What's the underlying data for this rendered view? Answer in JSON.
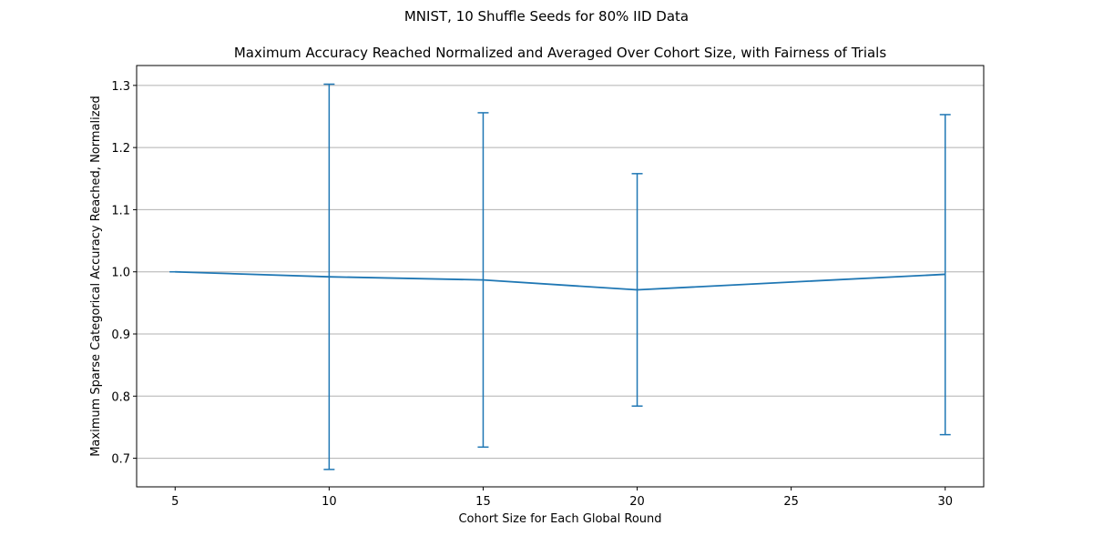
{
  "figure": {
    "suptitle": "MNIST, 10 Shuffle Seeds for 80% IID Data"
  },
  "chart_data": {
    "type": "line",
    "title": "Maximum Accuracy Reached Normalized and Averaged Over Cohort Size, with Fairness of Trials",
    "xlabel": "Cohort Size for Each Global Round",
    "ylabel": "Maximum Sparse Categorical Accuracy Reached, Normalized",
    "xlim": [
      3.75,
      31.25
    ],
    "ylim": [
      0.654,
      1.332
    ],
    "xticks": [
      5,
      10,
      15,
      20,
      25,
      30
    ],
    "yticks": [
      0.7,
      0.8,
      0.9,
      1.0,
      1.1,
      1.2,
      1.3
    ],
    "grid": "y",
    "color": "#1f77b4",
    "series": [
      {
        "x": [
          5,
          10,
          15,
          20,
          30
        ],
        "y": [
          1.0,
          0.992,
          0.987,
          0.971,
          0.996
        ],
        "yerr_low": [
          1.0,
          0.682,
          0.718,
          0.784,
          0.738
        ],
        "yerr_high": [
          1.0,
          1.302,
          1.256,
          1.158,
          1.253
        ]
      }
    ]
  }
}
